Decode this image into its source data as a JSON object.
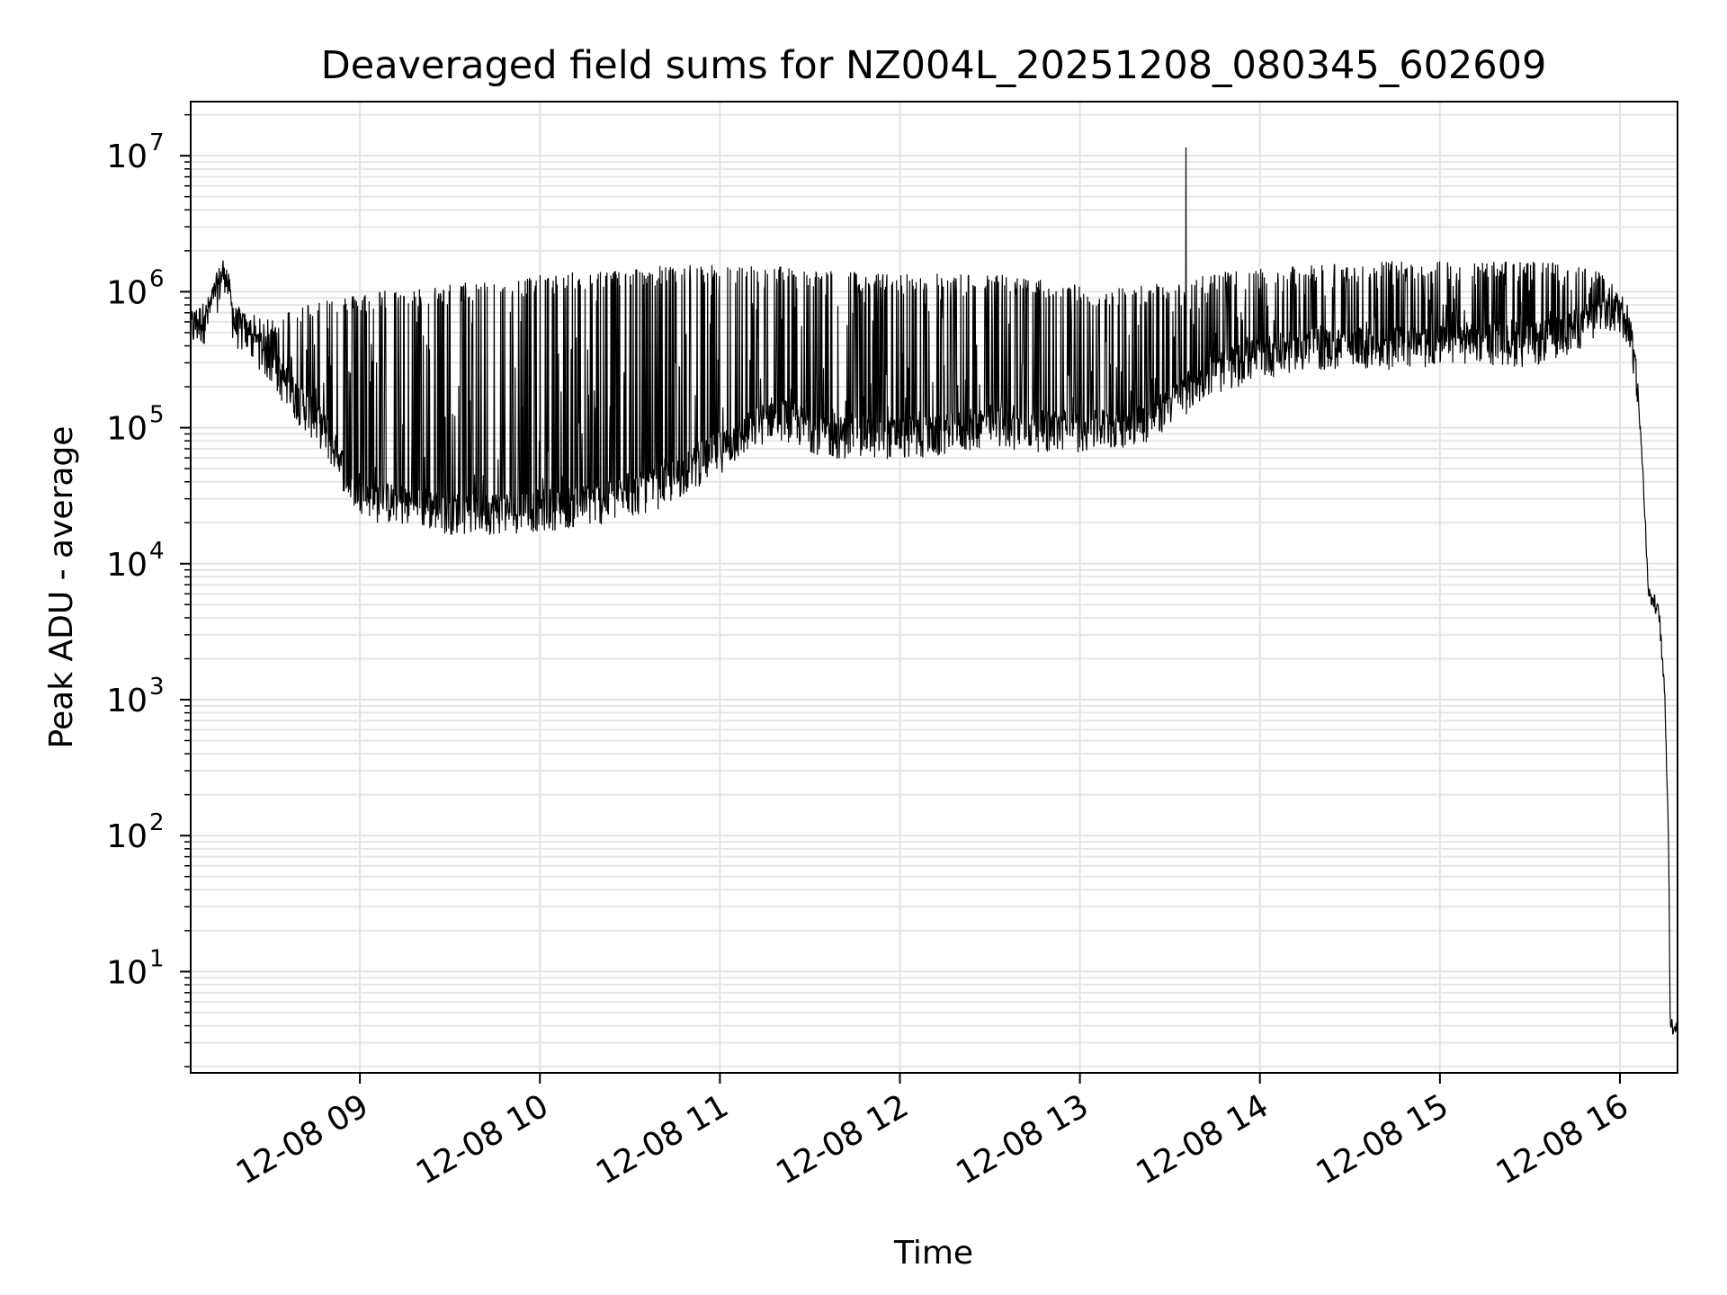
{
  "chart_data": {
    "type": "line",
    "title": "Deaveraged field sums for NZ004L_20251208_080345_602609",
    "xlabel": "Time",
    "ylabel": "Peak ADU - average",
    "yscale": "log",
    "ylim": [
      1.8,
      25000000
    ],
    "xlim_hours": [
      8.06,
      16.32
    ],
    "grid": true,
    "line_color": "#000000",
    "x_ticks": [
      {
        "hour": 9,
        "label": "12-08 09"
      },
      {
        "hour": 10,
        "label": "12-08 10"
      },
      {
        "hour": 11,
        "label": "12-08 11"
      },
      {
        "hour": 12,
        "label": "12-08 12"
      },
      {
        "hour": 13,
        "label": "12-08 13"
      },
      {
        "hour": 14,
        "label": "12-08 14"
      },
      {
        "hour": 15,
        "label": "12-08 15"
      },
      {
        "hour": 16,
        "label": "12-08 16"
      }
    ],
    "y_ticks": [
      {
        "value": 10,
        "base": "10",
        "exp": "1"
      },
      {
        "value": 100,
        "base": "10",
        "exp": "2"
      },
      {
        "value": 1000,
        "base": "10",
        "exp": "3"
      },
      {
        "value": 10000,
        "base": "10",
        "exp": "4"
      },
      {
        "value": 100000,
        "base": "10",
        "exp": "5"
      },
      {
        "value": 1000000,
        "base": "10",
        "exp": "6"
      },
      {
        "value": 10000000,
        "base": "10",
        "exp": "7"
      }
    ],
    "envelope": {
      "x_hours": [
        8.06,
        8.15,
        8.2,
        8.25,
        8.3,
        8.45,
        8.6,
        8.8,
        8.95,
        9.1,
        9.3,
        9.5,
        9.8,
        10.1,
        10.4,
        10.7,
        11.0,
        11.3,
        11.6,
        11.9,
        12.2,
        12.5,
        12.8,
        13.1,
        13.4,
        13.7,
        14.0,
        14.3,
        14.6,
        14.9,
        15.2,
        15.5,
        15.75,
        15.9,
        16.0,
        16.05,
        16.1,
        16.13,
        16.16,
        16.2,
        16.22,
        16.25,
        16.27,
        16.28,
        16.32
      ],
      "baseline": [
        550000,
        650000,
        1000000,
        1500000,
        600000,
        400000,
        200000,
        100000,
        40000,
        30000,
        28000,
        25000,
        25000,
        27000,
        30000,
        40000,
        70000,
        130000,
        90000,
        90000,
        90000,
        110000,
        100000,
        100000,
        120000,
        250000,
        350000,
        400000,
        400000,
        420000,
        450000,
        420000,
        550000,
        700000,
        750000,
        600000,
        200000,
        40000,
        6000,
        5000,
        4000,
        1000,
        100,
        4,
        4
      ],
      "peak": [
        700000,
        800000,
        1200000,
        1500000,
        800000,
        600000,
        700000,
        900000,
        900000,
        1000000,
        1000000,
        1100000,
        1200000,
        1300000,
        1400000,
        1500000,
        1500000,
        1500000,
        1400000,
        1300000,
        1300000,
        1300000,
        1200000,
        1000000,
        1100000,
        1300000,
        1400000,
        1500000,
        1600000,
        1600000,
        1600000,
        1600000,
        1500000,
        1400000,
        900000,
        700000,
        300000,
        50000,
        7000,
        6000,
        5000,
        2000,
        200,
        4,
        4
      ],
      "spike": {
        "hour": 13.59,
        "value": 11500000
      }
    }
  }
}
